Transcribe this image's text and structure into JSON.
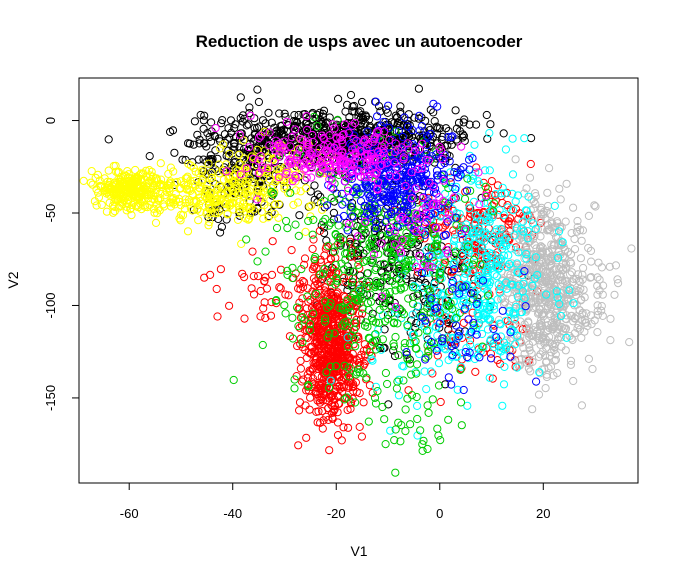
{
  "chart_data": {
    "type": "scatter",
    "title": "Reduction de usps avec un autoencoder",
    "xlabel": "V1",
    "ylabel": "V2",
    "xlim": [
      -69.7,
      38.3
    ],
    "ylim": [
      -196,
      23
    ],
    "xticks": [
      -60,
      -40,
      -20,
      0,
      20
    ],
    "yticks": [
      0,
      -50,
      -100,
      -150
    ],
    "grid": false,
    "legend": "none",
    "marker": "open-circle",
    "colors": {
      "black": "#000000",
      "red": "#ff0000",
      "green": "#00cd00",
      "blue": "#0000ff",
      "cyan": "#00ffff",
      "magenta": "#ff00ff",
      "yellow": "#ffff00",
      "gray": "#bebebe"
    },
    "series": [
      {
        "color": "#000000",
        "clusters": [
          {
            "cx": -20,
            "cy": -10,
            "sx": 12,
            "sy": 8,
            "n": 700
          },
          {
            "cx": -38,
            "cy": -30,
            "sx": 5,
            "sy": 12,
            "n": 150
          },
          {
            "cx": -10,
            "cy": -70,
            "sx": 8,
            "sy": 20,
            "n": 200
          },
          {
            "cx": -2,
            "cy": -100,
            "sx": 5,
            "sy": 20,
            "n": 80
          }
        ]
      },
      {
        "color": "#ffff00",
        "clusters": [
          {
            "cx": -60,
            "cy": -37,
            "sx": 3.5,
            "sy": 5,
            "n": 250
          },
          {
            "cx": -45,
            "cy": -42,
            "sx": 6,
            "sy": 8,
            "n": 220
          },
          {
            "cx": -32,
            "cy": -30,
            "sx": 6,
            "sy": 10,
            "n": 120
          }
        ]
      },
      {
        "color": "#ff0000",
        "clusters": [
          {
            "cx": -21,
            "cy": -120,
            "sx": 2.8,
            "sy": 20,
            "n": 700
          },
          {
            "cx": 6,
            "cy": -60,
            "sx": 6,
            "sy": 15,
            "n": 180
          },
          {
            "cx": -34,
            "cy": -90,
            "sx": 5,
            "sy": 10,
            "n": 40
          },
          {
            "cx": 8,
            "cy": -115,
            "sx": 6,
            "sy": 15,
            "n": 60
          }
        ]
      },
      {
        "color": "#bebebe",
        "clusters": [
          {
            "cx": 20,
            "cy": -90,
            "sx": 4,
            "sy": 22,
            "n": 550
          },
          {
            "cx": 27,
            "cy": -100,
            "sx": 4,
            "sy": 15,
            "n": 70
          }
        ]
      },
      {
        "color": "#00ffff",
        "clusters": [
          {
            "cx": 8,
            "cy": -80,
            "sx": 6,
            "sy": 28,
            "n": 380
          },
          {
            "cx": -5,
            "cy": -120,
            "sx": 6,
            "sy": 18,
            "n": 60
          }
        ]
      },
      {
        "color": "#00cd00",
        "clusters": [
          {
            "cx": -12,
            "cy": -80,
            "sx": 9,
            "sy": 35,
            "n": 450
          },
          {
            "cx": -5,
            "cy": -160,
            "sx": 4,
            "sy": 15,
            "n": 30
          }
        ]
      },
      {
        "color": "#0000ff",
        "clusters": [
          {
            "cx": -8,
            "cy": -30,
            "sx": 6,
            "sy": 14,
            "n": 350
          },
          {
            "cx": 5,
            "cy": -110,
            "sx": 5,
            "sy": 15,
            "n": 50
          }
        ]
      },
      {
        "color": "#ff00ff",
        "clusters": [
          {
            "cx": -20,
            "cy": -20,
            "sx": 8,
            "sy": 8,
            "n": 250
          },
          {
            "cx": -5,
            "cy": -60,
            "sx": 5,
            "sy": 15,
            "n": 50
          }
        ]
      }
    ]
  }
}
